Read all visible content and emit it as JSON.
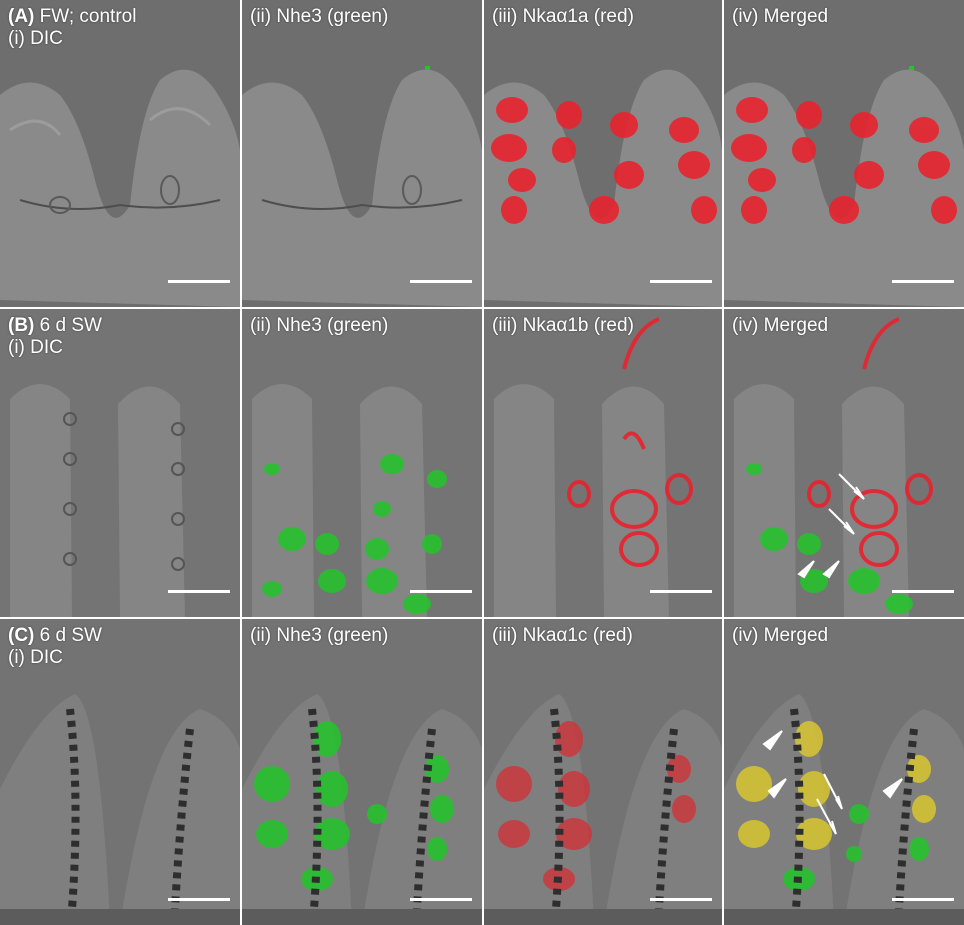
{
  "figure": {
    "rows": [
      {
        "row_letter": "(A)",
        "condition": "FW; control",
        "panels": [
          {
            "label": "(i) DIC",
            "kind": "dic"
          },
          {
            "label": "(ii) Nhe3 (green)",
            "kind": "green"
          },
          {
            "label": "(iii) Nkaα1a (red)",
            "kind": "red"
          },
          {
            "label": "(iv) Merged",
            "kind": "merged"
          }
        ]
      },
      {
        "row_letter": "(B)",
        "condition": "6 d SW",
        "panels": [
          {
            "label": "(i) DIC",
            "kind": "dic"
          },
          {
            "label": "(ii) Nhe3 (green)",
            "kind": "green"
          },
          {
            "label": "(iii) Nkaα1b (red)",
            "kind": "red"
          },
          {
            "label": "(iv) Merged",
            "kind": "merged"
          }
        ]
      },
      {
        "row_letter": "(C)",
        "condition": "6 d SW",
        "panels": [
          {
            "label": "(i) DIC",
            "kind": "dic"
          },
          {
            "label": "(ii) Nhe3 (green)",
            "kind": "green"
          },
          {
            "label": "(iii) Nkaα1c (red)",
            "kind": "red"
          },
          {
            "label": "(iv) Merged",
            "kind": "merged"
          }
        ]
      }
    ],
    "colors": {
      "background_gray": "#6f6f6f",
      "tissue_gray": "#8a8a8a",
      "nhe3_green": "#22c52a",
      "nka_red": "#e8232e",
      "colocalized_yellow": "#d9c630",
      "label_text": "#ffffff"
    }
  }
}
